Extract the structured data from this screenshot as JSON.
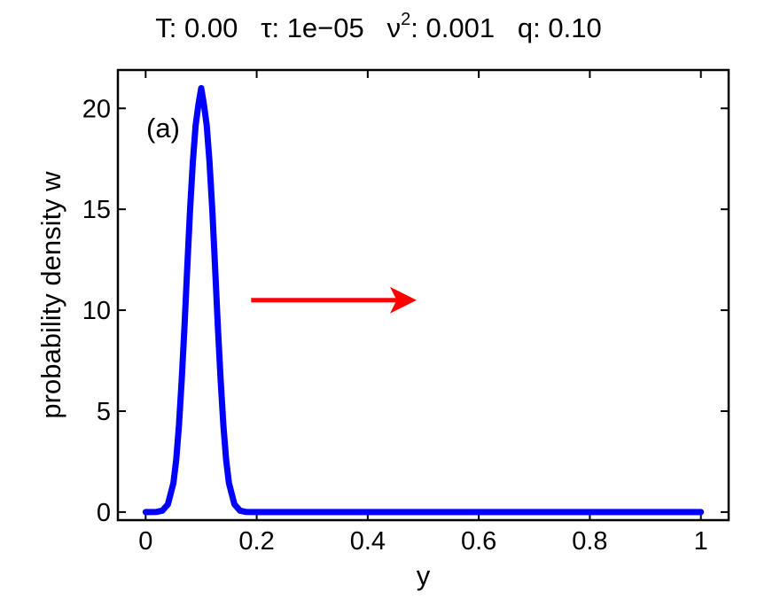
{
  "chart_data": {
    "type": "line",
    "title": {
      "T_label": "T:",
      "T_value": "0.00",
      "tau_label": "τ:",
      "tau_value": "1e−05",
      "nu_label": "ν",
      "nu_exp": "2",
      "nu_sep": ":",
      "nu_value": "0.001",
      "q_label": "q:",
      "q_value": "0.10"
    },
    "xlabel": "y",
    "ylabel": "probability density w",
    "panel_label": "(a)",
    "xlim": [
      -0.05,
      1.05
    ],
    "ylim": [
      -0.4,
      21.9
    ],
    "x_ticks": [
      0,
      0.2,
      0.4,
      0.6,
      0.8,
      1
    ],
    "x_tick_labels": [
      "0",
      "0.2",
      "0.4",
      "0.6",
      "0.8",
      "1"
    ],
    "y_ticks": [
      0,
      5,
      10,
      15,
      20
    ],
    "y_tick_labels": [
      "0",
      "5",
      "10",
      "15",
      "20"
    ],
    "grid": false,
    "series": [
      {
        "color": "#0000ff",
        "x": [
          0,
          0.01,
          0.02,
          0.03,
          0.04,
          0.05,
          0.055,
          0.06,
          0.065,
          0.07,
          0.075,
          0.08,
          0.085,
          0.09,
          0.095,
          0.1,
          0.105,
          0.11,
          0.115,
          0.12,
          0.125,
          0.13,
          0.135,
          0.14,
          0.145,
          0.15,
          0.16,
          0.17,
          0.18,
          0.2,
          0.3,
          0.4,
          0.5,
          0.6,
          0.7,
          0.8,
          0.9,
          1.0
        ],
        "y": [
          0,
          0.0,
          0.01,
          0.07,
          0.38,
          1.43,
          2.59,
          4.3,
          6.55,
          9.25,
          12.17,
          14.96,
          17.38,
          19.16,
          20.17,
          21.0,
          20.17,
          19.16,
          17.38,
          14.96,
          12.17,
          9.25,
          6.55,
          4.3,
          2.59,
          1.43,
          0.38,
          0.07,
          0.01,
          0.0,
          0,
          0,
          0,
          0,
          0,
          0,
          0,
          0
        ]
      }
    ],
    "annotation_arrow": {
      "color": "#ff0000",
      "x_start": 0.19,
      "x_end": 0.48,
      "y": 10.5,
      "direction": "right"
    }
  }
}
